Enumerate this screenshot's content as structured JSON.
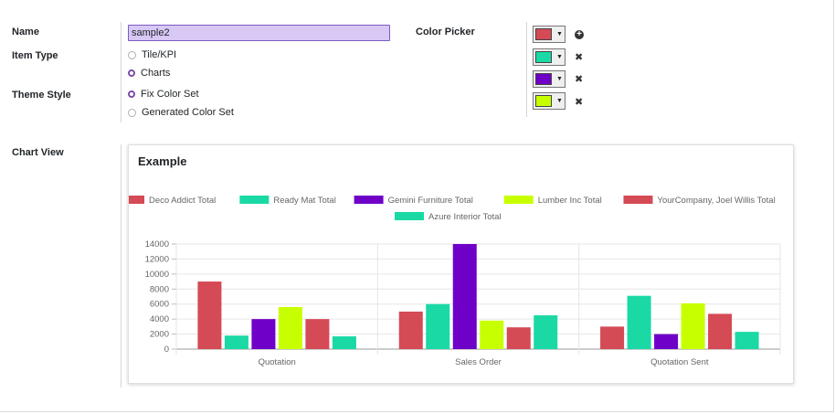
{
  "form": {
    "name_label": "Name",
    "name_value": "sample2",
    "item_type_label": "Item Type",
    "item_type_options": [
      {
        "label": "Tile/KPI",
        "selected": false
      },
      {
        "label": "Charts",
        "selected": true
      }
    ],
    "theme_style_label": "Theme Style",
    "theme_style_options": [
      {
        "label": "Fix Color Set",
        "selected": true
      },
      {
        "label": "Generated Color Set",
        "selected": false
      }
    ],
    "color_picker_label": "Color Picker",
    "colors": [
      {
        "hex": "#d44a55",
        "action": "plus-icon"
      },
      {
        "hex": "#1ad9a4",
        "action": "remove-icon"
      },
      {
        "hex": "#6f00c8",
        "action": "remove-icon"
      },
      {
        "hex": "#c8ff00",
        "action": "remove-icon"
      }
    ],
    "chart_view_label": "Chart View"
  },
  "chart_data": {
    "type": "bar",
    "title": "Example",
    "categories": [
      "Quotation",
      "Sales Order",
      "Quotation Sent"
    ],
    "series": [
      {
        "name": "Deco Addict Total",
        "color": "#d44a55",
        "values": [
          9000,
          5000,
          3000
        ]
      },
      {
        "name": "Ready Mat Total",
        "color": "#1ad9a4",
        "values": [
          1800,
          6000,
          7100
        ]
      },
      {
        "name": "Gemini Furniture Total",
        "color": "#6f00c8",
        "values": [
          4000,
          14000,
          2000
        ]
      },
      {
        "name": "Lumber Inc Total",
        "color": "#c8ff00",
        "values": [
          5600,
          3800,
          6100
        ]
      },
      {
        "name": "YourCompany, Joel Willis Total",
        "color": "#d44a55",
        "values": [
          4000,
          2900,
          4700
        ]
      },
      {
        "name": "Azure Interior Total",
        "color": "#1ad9a4",
        "values": [
          1700,
          4500,
          2300
        ]
      }
    ],
    "yticks": [
      0,
      2000,
      4000,
      6000,
      8000,
      10000,
      12000,
      14000
    ],
    "ylim": [
      0,
      14000
    ],
    "grid": true,
    "legend": "top"
  }
}
